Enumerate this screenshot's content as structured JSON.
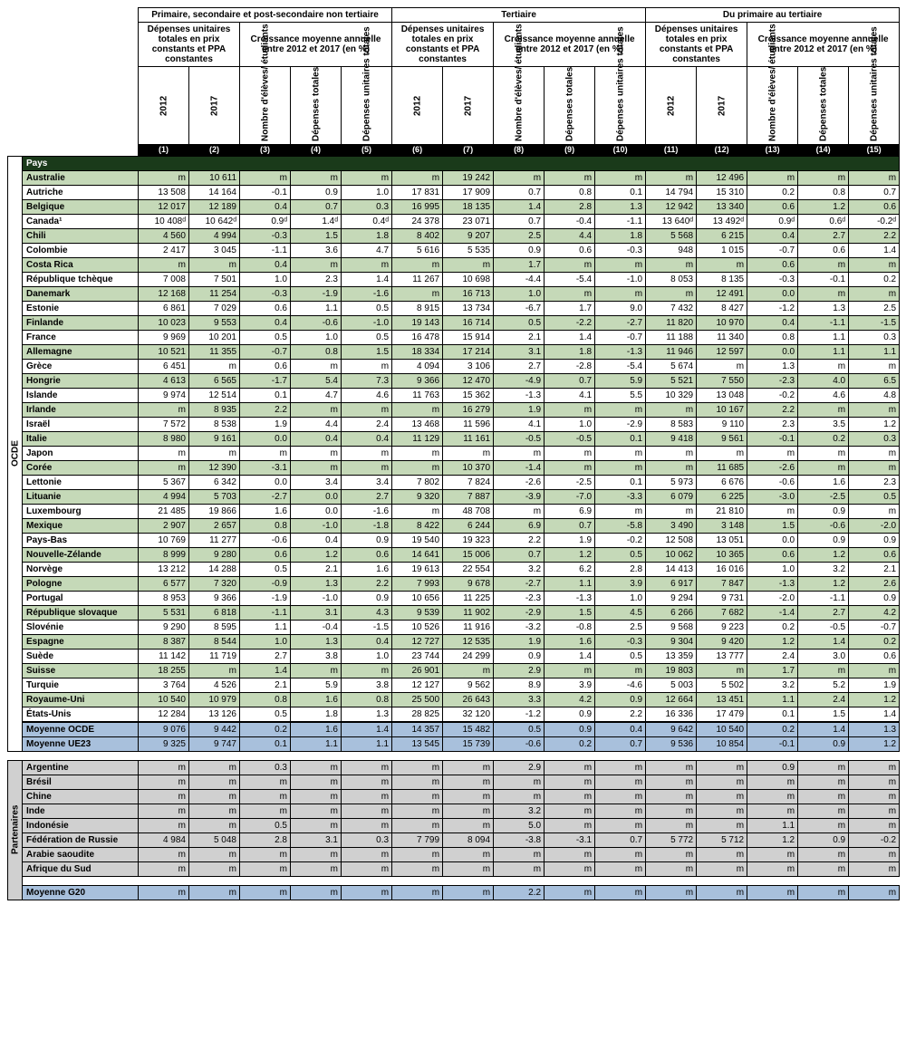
{
  "headers": {
    "group1": "Primaire, secondaire et post-secondaire non tertiaire",
    "group2": "Tertiaire",
    "group3": "Du primaire au tertiaire",
    "sub_dep": "Dépenses unitaires totales en prix constants et PPA constantes",
    "sub_croiss": "Croissance moyenne annuelle entre 2012 et 2017 (en %)",
    "y2012": "2012",
    "y2017": "2017",
    "nombre": "Nombre d'élèves/ étudiants",
    "dep_tot": "Dépenses totales",
    "dep_unit": "Dépenses unitaires totales",
    "pays": "Pays",
    "ocde_side": "OCDE",
    "part_side": "Partenaires"
  },
  "colnums": [
    "(1)",
    "(2)",
    "(3)",
    "(4)",
    "(5)",
    "(6)",
    "(7)",
    "(8)",
    "(9)",
    "(10)",
    "(11)",
    "(12)",
    "(13)",
    "(14)",
    "(15)"
  ],
  "ocde_rows": [
    {
      "n": "Australie",
      "v": [
        "m",
        "10 611",
        "m",
        "m",
        "m",
        "m",
        "19 242",
        "m",
        "m",
        "m",
        "m",
        "12 496",
        "m",
        "m",
        "m"
      ]
    },
    {
      "n": "Autriche",
      "v": [
        "13 508",
        "14 164",
        "-0.1",
        "0.9",
        "1.0",
        "17 831",
        "17 909",
        "0.7",
        "0.8",
        "0.1",
        "14 794",
        "15 310",
        "0.2",
        "0.8",
        "0.7"
      ]
    },
    {
      "n": "Belgique",
      "v": [
        "12 017",
        "12 189",
        "0.4",
        "0.7",
        "0.3",
        "16 995",
        "18 135",
        "1.4",
        "2.8",
        "1.3",
        "12 942",
        "13 340",
        "0.6",
        "1.2",
        "0.6"
      ]
    },
    {
      "n": "Canada¹",
      "v": [
        "10 408ᵈ",
        "10 642ᵈ",
        "0.9ᵈ",
        "1.4ᵈ",
        "0.4ᵈ",
        "24 378",
        "23 071",
        "0.7",
        "-0.4",
        "-1.1",
        "13 640ᵈ",
        "13 492ᵈ",
        "0.9ᵈ",
        "0.6ᵈ",
        "-0.2ᵈ"
      ]
    },
    {
      "n": "Chili",
      "v": [
        "4 560",
        "4 994",
        "-0.3",
        "1.5",
        "1.8",
        "8 402",
        "9 207",
        "2.5",
        "4.4",
        "1.8",
        "5 568",
        "6 215",
        "0.4",
        "2.7",
        "2.2"
      ]
    },
    {
      "n": "Colombie",
      "v": [
        "2 417",
        "3 045",
        "-1.1",
        "3.6",
        "4.7",
        "5 616",
        "5 535",
        "0.9",
        "0.6",
        "-0.3",
        "948",
        "1 015",
        "-0.7",
        "0.6",
        "1.4"
      ]
    },
    {
      "n": "Costa Rica",
      "v": [
        "m",
        "m",
        "0.4",
        "m",
        "m",
        "m",
        "m",
        "1.7",
        "m",
        "m",
        "m",
        "m",
        "0.6",
        "m",
        "m"
      ]
    },
    {
      "n": "République tchèque",
      "v": [
        "7 008",
        "7 501",
        "1.0",
        "2.3",
        "1.4",
        "11 267",
        "10 698",
        "-4.4",
        "-5.4",
        "-1.0",
        "8 053",
        "8 135",
        "-0.3",
        "-0.1",
        "0.2"
      ]
    },
    {
      "n": "Danemark",
      "v": [
        "12 168",
        "11 254",
        "-0.3",
        "-1.9",
        "-1.6",
        "m",
        "16 713",
        "1.0",
        "m",
        "m",
        "m",
        "12 491",
        "0.0",
        "m",
        "m"
      ]
    },
    {
      "n": "Estonie",
      "v": [
        "6 861",
        "7 029",
        "0.6",
        "1.1",
        "0.5",
        "8 915",
        "13 734",
        "-6.7",
        "1.7",
        "9.0",
        "7 432",
        "8 427",
        "-1.2",
        "1.3",
        "2.5"
      ]
    },
    {
      "n": "Finlande",
      "v": [
        "10 023",
        "9 553",
        "0.4",
        "-0.6",
        "-1.0",
        "19 143",
        "16 714",
        "0.5",
        "-2.2",
        "-2.7",
        "11 820",
        "10 970",
        "0.4",
        "-1.1",
        "-1.5"
      ]
    },
    {
      "n": "France",
      "v": [
        "9 969",
        "10 201",
        "0.5",
        "1.0",
        "0.5",
        "16 478",
        "15 914",
        "2.1",
        "1.4",
        "-0.7",
        "11 188",
        "11 340",
        "0.8",
        "1.1",
        "0.3"
      ]
    },
    {
      "n": "Allemagne",
      "v": [
        "10 521",
        "11 355",
        "-0.7",
        "0.8",
        "1.5",
        "18 334",
        "17 214",
        "3.1",
        "1.8",
        "-1.3",
        "11 946",
        "12 597",
        "0.0",
        "1.1",
        "1.1"
      ]
    },
    {
      "n": "Grèce",
      "v": [
        "6 451",
        "m",
        "0.6",
        "m",
        "m",
        "4 094",
        "3 106",
        "2.7",
        "-2.8",
        "-5.4",
        "5 674",
        "m",
        "1.3",
        "m",
        "m"
      ]
    },
    {
      "n": "Hongrie",
      "v": [
        "4 613",
        "6 565",
        "-1.7",
        "5.4",
        "7.3",
        "9 366",
        "12 470",
        "-4.9",
        "0.7",
        "5.9",
        "5 521",
        "7 550",
        "-2.3",
        "4.0",
        "6.5"
      ]
    },
    {
      "n": "Islande",
      "v": [
        "9 974",
        "12 514",
        "0.1",
        "4.7",
        "4.6",
        "11 763",
        "15 362",
        "-1.3",
        "4.1",
        "5.5",
        "10 329",
        "13 048",
        "-0.2",
        "4.6",
        "4.8"
      ]
    },
    {
      "n": "Irlande",
      "v": [
        "m",
        "8 935",
        "2.2",
        "m",
        "m",
        "m",
        "16 279",
        "1.9",
        "m",
        "m",
        "m",
        "10 167",
        "2.2",
        "m",
        "m"
      ]
    },
    {
      "n": "Israël",
      "v": [
        "7 572",
        "8 538",
        "1.9",
        "4.4",
        "2.4",
        "13 468",
        "11 596",
        "4.1",
        "1.0",
        "-2.9",
        "8 583",
        "9 110",
        "2.3",
        "3.5",
        "1.2"
      ]
    },
    {
      "n": "Italie",
      "v": [
        "8 980",
        "9 161",
        "0.0",
        "0.4",
        "0.4",
        "11 129",
        "11 161",
        "-0.5",
        "-0.5",
        "0.1",
        "9 418",
        "9 561",
        "-0.1",
        "0.2",
        "0.3"
      ]
    },
    {
      "n": "Japon",
      "v": [
        "m",
        "m",
        "m",
        "m",
        "m",
        "m",
        "m",
        "m",
        "m",
        "m",
        "m",
        "m",
        "m",
        "m",
        "m"
      ]
    },
    {
      "n": "Corée",
      "v": [
        "m",
        "12 390",
        "-3.1",
        "m",
        "m",
        "m",
        "10 370",
        "-1.4",
        "m",
        "m",
        "m",
        "11 685",
        "-2.6",
        "m",
        "m"
      ]
    },
    {
      "n": "Lettonie",
      "v": [
        "5 367",
        "6 342",
        "0.0",
        "3.4",
        "3.4",
        "7 802",
        "7 824",
        "-2.6",
        "-2.5",
        "0.1",
        "5 973",
        "6 676",
        "-0.6",
        "1.6",
        "2.3"
      ]
    },
    {
      "n": "Lituanie",
      "v": [
        "4 994",
        "5 703",
        "-2.7",
        "0.0",
        "2.7",
        "9 320",
        "7 887",
        "-3.9",
        "-7.0",
        "-3.3",
        "6 079",
        "6 225",
        "-3.0",
        "-2.5",
        "0.5"
      ]
    },
    {
      "n": "Luxembourg",
      "v": [
        "21 485",
        "19 866",
        "1.6",
        "0.0",
        "-1.6",
        "m",
        "48 708",
        "m",
        "6.9",
        "m",
        "m",
        "21 810",
        "m",
        "0.9",
        "m"
      ]
    },
    {
      "n": "Mexique",
      "v": [
        "2 907",
        "2 657",
        "0.8",
        "-1.0",
        "-1.8",
        "8 422",
        "6 244",
        "6.9",
        "0.7",
        "-5.8",
        "3 490",
        "3 148",
        "1.5",
        "-0.6",
        "-2.0"
      ]
    },
    {
      "n": "Pays-Bas",
      "v": [
        "10 769",
        "11 277",
        "-0.6",
        "0.4",
        "0.9",
        "19 540",
        "19 323",
        "2.2",
        "1.9",
        "-0.2",
        "12 508",
        "13 051",
        "0.0",
        "0.9",
        "0.9"
      ]
    },
    {
      "n": "Nouvelle-Zélande",
      "v": [
        "8 999",
        "9 280",
        "0.6",
        "1.2",
        "0.6",
        "14 641",
        "15 006",
        "0.7",
        "1.2",
        "0.5",
        "10 062",
        "10 365",
        "0.6",
        "1.2",
        "0.6"
      ]
    },
    {
      "n": "Norvège",
      "v": [
        "13 212",
        "14 288",
        "0.5",
        "2.1",
        "1.6",
        "19 613",
        "22 554",
        "3.2",
        "6.2",
        "2.8",
        "14 413",
        "16 016",
        "1.0",
        "3.2",
        "2.1"
      ]
    },
    {
      "n": "Pologne",
      "v": [
        "6 577",
        "7 320",
        "-0.9",
        "1.3",
        "2.2",
        "7 993",
        "9 678",
        "-2.7",
        "1.1",
        "3.9",
        "6 917",
        "7 847",
        "-1.3",
        "1.2",
        "2.6"
      ]
    },
    {
      "n": "Portugal",
      "v": [
        "8 953",
        "9 366",
        "-1.9",
        "-1.0",
        "0.9",
        "10 656",
        "11 225",
        "-2.3",
        "-1.3",
        "1.0",
        "9 294",
        "9 731",
        "-2.0",
        "-1.1",
        "0.9"
      ]
    },
    {
      "n": "République slovaque",
      "v": [
        "5 531",
        "6 818",
        "-1.1",
        "3.1",
        "4.3",
        "9 539",
        "11 902",
        "-2.9",
        "1.5",
        "4.5",
        "6 266",
        "7 682",
        "-1.4",
        "2.7",
        "4.2"
      ]
    },
    {
      "n": "Slovénie",
      "v": [
        "9 290",
        "8 595",
        "1.1",
        "-0.4",
        "-1.5",
        "10 526",
        "11 916",
        "-3.2",
        "-0.8",
        "2.5",
        "9 568",
        "9 223",
        "0.2",
        "-0.5",
        "-0.7"
      ]
    },
    {
      "n": "Espagne",
      "v": [
        "8 387",
        "8 544",
        "1.0",
        "1.3",
        "0.4",
        "12 727",
        "12 535",
        "1.9",
        "1.6",
        "-0.3",
        "9 304",
        "9 420",
        "1.2",
        "1.4",
        "0.2"
      ]
    },
    {
      "n": "Suède",
      "v": [
        "11 142",
        "11 719",
        "2.7",
        "3.8",
        "1.0",
        "23 744",
        "24 299",
        "0.9",
        "1.4",
        "0.5",
        "13 359",
        "13 777",
        "2.4",
        "3.0",
        "0.6"
      ]
    },
    {
      "n": "Suisse",
      "v": [
        "18 255",
        "m",
        "1.4",
        "m",
        "m",
        "26 901",
        "m",
        "2.9",
        "m",
        "m",
        "19 803",
        "m",
        "1.7",
        "m",
        "m"
      ]
    },
    {
      "n": "Turquie",
      "v": [
        "3 764",
        "4 526",
        "2.1",
        "5.9",
        "3.8",
        "12 127",
        "9 562",
        "8.9",
        "3.9",
        "-4.6",
        "5 003",
        "5 502",
        "3.2",
        "5.2",
        "1.9"
      ]
    },
    {
      "n": "Royaume-Uni",
      "v": [
        "10 540",
        "10 979",
        "0.8",
        "1.6",
        "0.8",
        "25 500",
        "26 643",
        "3.3",
        "4.2",
        "0.9",
        "12 664",
        "13 451",
        "1.1",
        "2.4",
        "1.2"
      ]
    },
    {
      "n": "États-Unis",
      "v": [
        "12 284",
        "13 126",
        "0.5",
        "1.8",
        "1.3",
        "28 825",
        "32 120",
        "-1.2",
        "0.9",
        "2.2",
        "16 336",
        "17 479",
        "0.1",
        "1.5",
        "1.4"
      ]
    }
  ],
  "ocde_avg": [
    {
      "n": "Moyenne OCDE",
      "v": [
        "9 076",
        "9 442",
        "0.2",
        "1.6",
        "1.4",
        "14 357",
        "15 482",
        "0.5",
        "0.9",
        "0.4",
        "9 642",
        "10 540",
        "0.2",
        "1.4",
        "1.3"
      ]
    },
    {
      "n": "Moyenne UE23",
      "v": [
        "9 325",
        "9 747",
        "0.1",
        "1.1",
        "1.1",
        "13 545",
        "15 739",
        "-0.6",
        "0.2",
        "0.7",
        "9 536",
        "10 854",
        "-0.1",
        "0.9",
        "1.2"
      ]
    }
  ],
  "part_rows": [
    {
      "n": "Argentine",
      "v": [
        "m",
        "m",
        "0.3",
        "m",
        "m",
        "m",
        "m",
        "2.9",
        "m",
        "m",
        "m",
        "m",
        "0.9",
        "m",
        "m"
      ]
    },
    {
      "n": "Brésil",
      "v": [
        "m",
        "m",
        "m",
        "m",
        "m",
        "m",
        "m",
        "m",
        "m",
        "m",
        "m",
        "m",
        "m",
        "m",
        "m"
      ]
    },
    {
      "n": "Chine",
      "v": [
        "m",
        "m",
        "m",
        "m",
        "m",
        "m",
        "m",
        "m",
        "m",
        "m",
        "m",
        "m",
        "m",
        "m",
        "m"
      ]
    },
    {
      "n": "Inde",
      "v": [
        "m",
        "m",
        "m",
        "m",
        "m",
        "m",
        "m",
        "3.2",
        "m",
        "m",
        "m",
        "m",
        "m",
        "m",
        "m"
      ]
    },
    {
      "n": "Indonésie",
      "v": [
        "m",
        "m",
        "0.5",
        "m",
        "m",
        "m",
        "m",
        "5.0",
        "m",
        "m",
        "m",
        "m",
        "1.1",
        "m",
        "m"
      ]
    },
    {
      "n": "Fédération de Russie",
      "v": [
        "4 984",
        "5 048",
        "2.8",
        "3.1",
        "0.3",
        "7 799",
        "8 094",
        "-3.8",
        "-3.1",
        "0.7",
        "5 772",
        "5 712",
        "1.2",
        "0.9",
        "-0.2"
      ]
    },
    {
      "n": "Arabie saoudite",
      "v": [
        "m",
        "m",
        "m",
        "m",
        "m",
        "m",
        "m",
        "m",
        "m",
        "m",
        "m",
        "m",
        "m",
        "m",
        "m"
      ]
    },
    {
      "n": "Afrique du Sud",
      "v": [
        "m",
        "m",
        "m",
        "m",
        "m",
        "m",
        "m",
        "m",
        "m",
        "m",
        "m",
        "m",
        "m",
        "m",
        "m"
      ]
    }
  ],
  "g20": {
    "n": "Moyenne G20",
    "v": [
      "m",
      "m",
      "m",
      "m",
      "m",
      "m",
      "m",
      "2.2",
      "m",
      "m",
      "m",
      "m",
      "m",
      "m",
      "m"
    ]
  }
}
